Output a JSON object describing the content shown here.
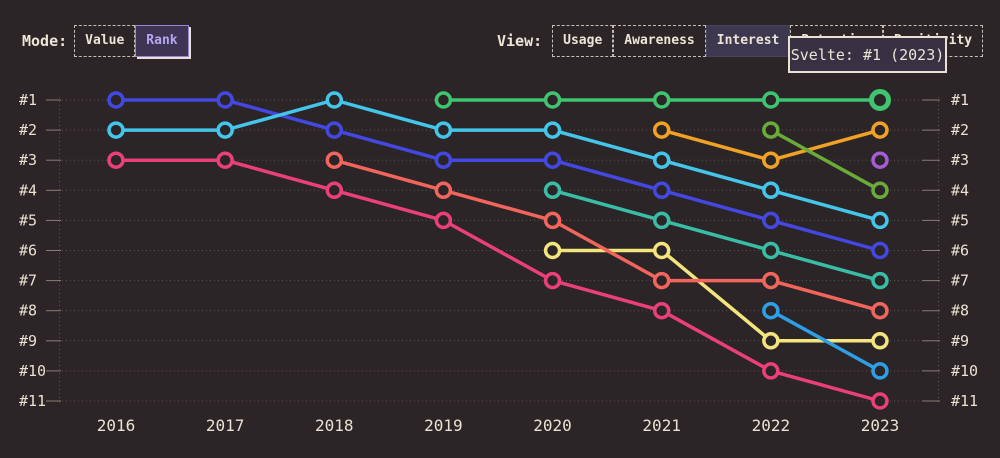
{
  "controls": {
    "mode": {
      "label": "Mode:",
      "options": [
        {
          "label": "Value",
          "selected": false
        },
        {
          "label": "Rank",
          "selected": true
        }
      ]
    },
    "view": {
      "label": "View:",
      "options": [
        {
          "label": "Usage",
          "selected": false
        },
        {
          "label": "Awareness",
          "selected": false
        },
        {
          "label": "Interest",
          "selected": true
        },
        {
          "label": "Retention",
          "selected": false
        },
        {
          "label": "Positivity",
          "selected": false
        }
      ]
    }
  },
  "tooltip": {
    "text": "Svelte: #1 (2023)"
  },
  "colors": {
    "background": "#2b2527",
    "text": "#ece5d6",
    "accent_purple": "#b6a5f4",
    "tooltip_bg": "#383144",
    "highlight_series": "#3fc46f"
  },
  "chart_data": {
    "type": "line",
    "x": [
      2016,
      2017,
      2018,
      2019,
      2020,
      2021,
      2022,
      2023
    ],
    "y_axis": {
      "labels": [
        "#1",
        "#2",
        "#3",
        "#4",
        "#5",
        "#6",
        "#7",
        "#8",
        "#9",
        "#10",
        "#11"
      ],
      "min": 1,
      "max": 11,
      "inverted": true,
      "shown_on": "both-sides"
    },
    "grid": "dotted-horizontal",
    "legend": "none",
    "series": [
      {
        "name": "series-pink",
        "color": "#ea3f7b",
        "ranks": {
          "2016": 3,
          "2017": 3,
          "2018": 4,
          "2019": 5,
          "2020": 7,
          "2021": 8,
          "2022": 10,
          "2023": 11
        }
      },
      {
        "name": "series-blue",
        "color": "#4348e2",
        "ranks": {
          "2016": 1,
          "2017": 1,
          "2018": 2,
          "2019": 3,
          "2020": 3,
          "2021": 4,
          "2022": 5,
          "2023": 6
        }
      },
      {
        "name": "series-cyan",
        "color": "#44c5ea",
        "ranks": {
          "2016": 2,
          "2017": 2,
          "2018": 1,
          "2019": 2,
          "2020": 2,
          "2021": 3,
          "2022": 4,
          "2023": 5
        }
      },
      {
        "name": "series-yellow",
        "color": "#f4e47e",
        "ranks": {
          "2020": 6,
          "2021": 6,
          "2022": 9,
          "2023": 9
        }
      },
      {
        "name": "series-salmon",
        "color": "#f2655d",
        "ranks": {
          "2018": 3,
          "2019": 4,
          "2020": 5,
          "2021": 7,
          "2022": 7,
          "2023": 8
        }
      },
      {
        "name": "series-teal",
        "color": "#39bda6",
        "ranks": {
          "2020": 4,
          "2021": 5,
          "2022": 6,
          "2023": 7
        }
      },
      {
        "name": "series-sky",
        "color": "#2e9fe6",
        "ranks": {
          "2022": 8,
          "2023": 10
        }
      },
      {
        "name": "series-amber",
        "color": "#f0a126",
        "ranks": {
          "2021": 2,
          "2022": 3,
          "2023": 2
        }
      },
      {
        "name": "series-olive",
        "color": "#6aab3a",
        "ranks": {
          "2022": 2,
          "2023": 4
        }
      },
      {
        "name": "series-purple",
        "color": "#a65cd6",
        "ranks": {
          "2023": 3
        }
      },
      {
        "name": "svelte",
        "color": "#3fc46f",
        "ranks": {
          "2019": 1,
          "2020": 1,
          "2021": 1,
          "2022": 1,
          "2023": 1
        }
      }
    ],
    "highlight": {
      "series": "svelte",
      "year": 2023,
      "rank": 1,
      "label": "Svelte: #1 (2023)"
    }
  }
}
